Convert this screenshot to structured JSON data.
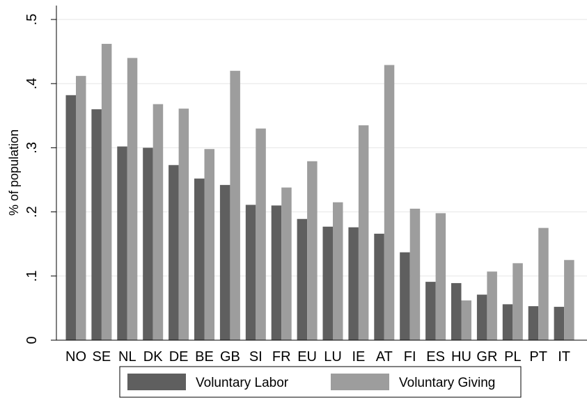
{
  "chart_data": {
    "type": "bar",
    "title": "",
    "xlabel": "",
    "ylabel": "% of population",
    "ylim": [
      0,
      0.5
    ],
    "yticks": [
      {
        "value": 0,
        "label": "0"
      },
      {
        "value": 0.1,
        "label": ".1"
      },
      {
        "value": 0.2,
        "label": ".2"
      },
      {
        "value": 0.3,
        "label": ".3"
      },
      {
        "value": 0.4,
        "label": ".4"
      },
      {
        "value": 0.5,
        "label": ".5"
      }
    ],
    "grid": true,
    "legend_position": "bottom",
    "categories": [
      "NO",
      "SE",
      "NL",
      "DK",
      "DE",
      "BE",
      "GB",
      "SI",
      "FR",
      "EU",
      "LU",
      "IE",
      "AT",
      "FI",
      "ES",
      "HU",
      "GR",
      "PL",
      "PT",
      "IT"
    ],
    "series": [
      {
        "name": "Voluntary Labor",
        "color": "#5f5f5f",
        "values": [
          0.382,
          0.36,
          0.302,
          0.3,
          0.273,
          0.252,
          0.242,
          0.211,
          0.21,
          0.189,
          0.177,
          0.176,
          0.166,
          0.137,
          0.091,
          0.089,
          0.071,
          0.056,
          0.053,
          0.052
        ]
      },
      {
        "name": "Voluntary Giving",
        "color": "#9d9d9d",
        "values": [
          0.412,
          0.462,
          0.44,
          0.368,
          0.361,
          0.298,
          0.42,
          0.33,
          0.238,
          0.279,
          0.215,
          0.335,
          0.429,
          0.205,
          0.198,
          0.062,
          0.107,
          0.12,
          0.175,
          0.125
        ]
      }
    ]
  }
}
